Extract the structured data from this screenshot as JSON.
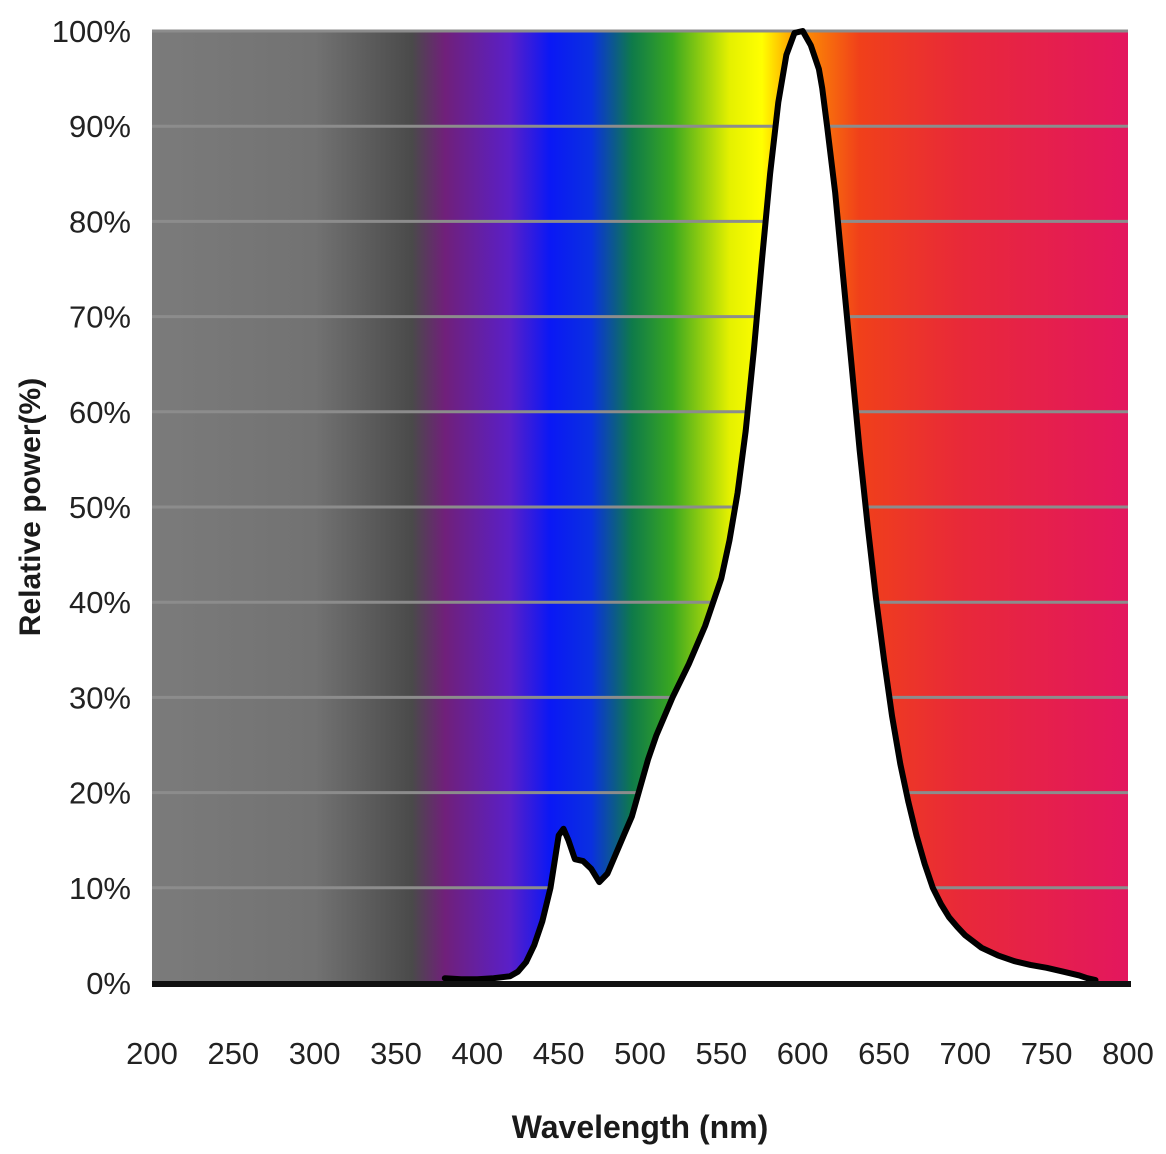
{
  "chart_data": {
    "type": "area",
    "xlabel": "Wavelength (nm)",
    "ylabel": "Relative power(%)",
    "xlim": [
      200,
      800
    ],
    "ylim": [
      0,
      100
    ],
    "x_ticks": [
      200,
      250,
      300,
      350,
      400,
      450,
      500,
      550,
      600,
      650,
      700,
      750,
      800
    ],
    "x_tick_labels": [
      "200",
      "250",
      "300",
      "350",
      "400",
      "450",
      "500",
      "550",
      "600",
      "650",
      "700",
      "750",
      "800"
    ],
    "y_ticks": [
      0,
      10,
      20,
      30,
      40,
      50,
      60,
      70,
      80,
      90,
      100
    ],
    "y_tick_labels": [
      "0%",
      "10%",
      "20%",
      "30%",
      "40%",
      "50%",
      "60%",
      "70%",
      "80%",
      "90%",
      "100%"
    ],
    "grid": true,
    "line_color": "#000000",
    "fill_under_curve": "#ffffff",
    "background_spectrum": [
      {
        "wavelength": 200,
        "color": "#7b7b7b"
      },
      {
        "wavelength": 300,
        "color": "#727272"
      },
      {
        "wavelength": 360,
        "color": "#4a4a4a"
      },
      {
        "wavelength": 380,
        "color": "#70207a"
      },
      {
        "wavelength": 420,
        "color": "#5a1fc8"
      },
      {
        "wavelength": 445,
        "color": "#0a18f5"
      },
      {
        "wavelength": 470,
        "color": "#0a30e0"
      },
      {
        "wavelength": 495,
        "color": "#0e7a4a"
      },
      {
        "wavelength": 520,
        "color": "#3aa820"
      },
      {
        "wavelength": 555,
        "color": "#e4f000"
      },
      {
        "wavelength": 575,
        "color": "#ffff00"
      },
      {
        "wavelength": 595,
        "color": "#ff9a00"
      },
      {
        "wavelength": 635,
        "color": "#f0401a"
      },
      {
        "wavelength": 700,
        "color": "#e8283a"
      },
      {
        "wavelength": 800,
        "color": "#e3175e"
      }
    ],
    "series": [
      {
        "x": [
          380,
          390,
          400,
          410,
          420,
          425,
          430,
          435,
          440,
          445,
          450,
          453,
          456,
          460,
          465,
          470,
          475,
          480,
          485,
          490,
          495,
          500,
          505,
          510,
          515,
          520,
          530,
          540,
          550,
          555,
          560,
          565,
          570,
          575,
          580,
          585,
          590,
          595,
          600,
          605,
          610,
          612,
          615,
          620,
          625,
          630,
          635,
          640,
          645,
          650,
          655,
          660,
          665,
          670,
          675,
          680,
          685,
          690,
          695,
          700,
          710,
          720,
          730,
          740,
          750,
          760,
          770,
          775,
          780
        ],
        "y": [
          0.5,
          0.4,
          0.4,
          0.5,
          0.7,
          1.2,
          2.2,
          4.0,
          6.5,
          10.0,
          15.5,
          16.2,
          15.0,
          13.0,
          12.8,
          12.0,
          10.6,
          11.5,
          13.5,
          15.5,
          17.5,
          20.5,
          23.5,
          26.0,
          28.0,
          30.0,
          33.5,
          37.5,
          42.5,
          46.5,
          51.5,
          58.0,
          66.5,
          76.0,
          85.0,
          92.5,
          97.5,
          99.8,
          100.0,
          98.5,
          96.0,
          94.0,
          90.0,
          83.0,
          74.0,
          65.0,
          56.0,
          48.0,
          40.5,
          34.0,
          28.0,
          23.0,
          19.0,
          15.5,
          12.5,
          10.0,
          8.3,
          6.9,
          5.9,
          5.0,
          3.7,
          2.9,
          2.3,
          1.9,
          1.6,
          1.2,
          0.8,
          0.5,
          0.3
        ]
      }
    ]
  }
}
